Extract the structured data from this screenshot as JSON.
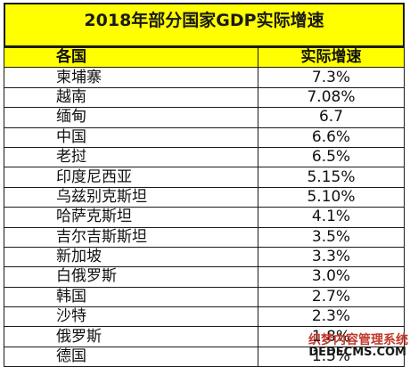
{
  "title": "2018年部分国家GDP实际增速",
  "columns": [
    "各国",
    "实际增速"
  ],
  "rows": [
    {
      "country": "柬埔寨",
      "growth": "7.3%"
    },
    {
      "country": "越南",
      "growth": "7.08%"
    },
    {
      "country": "缅甸",
      "growth": "6.7"
    },
    {
      "country": "中国",
      "growth": "6.6%"
    },
    {
      "country": "老挝",
      "growth": "6.5%"
    },
    {
      "country": "印度尼西亚",
      "growth": "5.15%"
    },
    {
      "country": "乌兹别克斯坦",
      "growth": "5.10%"
    },
    {
      "country": "哈萨克斯坦",
      "growth": "4.1%"
    },
    {
      "country": "吉尔吉斯斯坦",
      "growth": "3.5%"
    },
    {
      "country": "新加坡",
      "growth": "3.3%"
    },
    {
      "country": "白俄罗斯",
      "growth": "3.0%"
    },
    {
      "country": "韩国",
      "growth": "2.7%"
    },
    {
      "country": "沙特",
      "growth": "2.3%"
    },
    {
      "country": "俄罗斯",
      "growth": "1.8%"
    },
    {
      "country": "德国",
      "growth": "1.5%"
    }
  ],
  "watermark": {
    "line1": "织梦内容管理系统",
    "line2": "DEDECMS.COM"
  }
}
